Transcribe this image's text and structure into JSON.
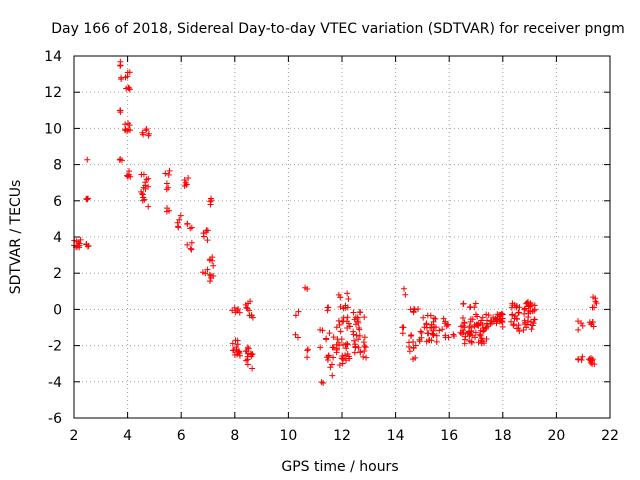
{
  "chart_data": {
    "type": "scatter",
    "title": "Day 166 of 2018, Sidereal Day-to-day VTEC variation (SDTVAR) for receiver pngm",
    "xlabel": "GPS time / hours",
    "ylabel": "SDTVAR / TECUs",
    "xlim": [
      2,
      22
    ],
    "ylim": [
      -6,
      14
    ],
    "x_ticks": [
      2,
      4,
      6,
      8,
      10,
      12,
      14,
      16,
      18,
      20,
      22
    ],
    "y_ticks": [
      -6,
      -4,
      -2,
      0,
      2,
      4,
      6,
      8,
      10,
      12,
      14
    ],
    "grid": true,
    "marker": "+",
    "color": "#ff0000",
    "clusters": [
      {
        "x": [
          2.0,
          2.25
        ],
        "y": [
          3.4,
          3.9
        ],
        "n": 10
      },
      {
        "x": [
          2.45,
          2.55
        ],
        "y": [
          3.3,
          3.8
        ],
        "n": 4
      },
      {
        "x": [
          2.45,
          2.55
        ],
        "y": [
          5.9,
          6.2
        ],
        "n": 4
      },
      {
        "x": [
          2.48,
          2.52
        ],
        "y": [
          8.2,
          8.3
        ],
        "n": 1
      },
      {
        "x": [
          3.7,
          3.8
        ],
        "y": [
          13.4,
          13.8
        ],
        "n": 3
      },
      {
        "x": [
          3.7,
          3.8
        ],
        "y": [
          12.7,
          12.9
        ],
        "n": 2
      },
      {
        "x": [
          3.9,
          4.1
        ],
        "y": [
          11.9,
          13.1
        ],
        "n": 8
      },
      {
        "x": [
          3.7,
          3.8
        ],
        "y": [
          10.7,
          11.1
        ],
        "n": 3
      },
      {
        "x": [
          3.9,
          4.1
        ],
        "y": [
          9.7,
          10.4
        ],
        "n": 8
      },
      {
        "x": [
          3.7,
          3.8
        ],
        "y": [
          8.1,
          8.4
        ],
        "n": 3
      },
      {
        "x": [
          3.95,
          4.1
        ],
        "y": [
          7.2,
          7.7
        ],
        "n": 6
      },
      {
        "x": [
          4.55,
          4.8
        ],
        "y": [
          9.6,
          10.0
        ],
        "n": 6
      },
      {
        "x": [
          4.5,
          4.8
        ],
        "y": [
          5.5,
          7.5
        ],
        "n": 16
      },
      {
        "x": [
          5.4,
          5.6
        ],
        "y": [
          7.3,
          7.7
        ],
        "n": 3
      },
      {
        "x": [
          5.4,
          5.6
        ],
        "y": [
          6.6,
          7.0
        ],
        "n": 3
      },
      {
        "x": [
          5.4,
          5.6
        ],
        "y": [
          5.3,
          5.6
        ],
        "n": 3
      },
      {
        "x": [
          5.85,
          6.0
        ],
        "y": [
          4.5,
          5.2
        ],
        "n": 5
      },
      {
        "x": [
          6.1,
          6.4
        ],
        "y": [
          6.7,
          7.3
        ],
        "n": 6
      },
      {
        "x": [
          6.2,
          6.4
        ],
        "y": [
          4.4,
          4.8
        ],
        "n": 4
      },
      {
        "x": [
          6.2,
          6.4
        ],
        "y": [
          3.3,
          3.7
        ],
        "n": 4
      },
      {
        "x": [
          6.8,
          7.0
        ],
        "y": [
          3.8,
          4.4
        ],
        "n": 6
      },
      {
        "x": [
          6.8,
          7.0
        ],
        "y": [
          1.9,
          2.2
        ],
        "n": 3
      },
      {
        "x": [
          7.05,
          7.2
        ],
        "y": [
          5.5,
          6.2
        ],
        "n": 4
      },
      {
        "x": [
          7.05,
          7.2
        ],
        "y": [
          2.4,
          2.9
        ],
        "n": 5
      },
      {
        "x": [
          7.05,
          7.2
        ],
        "y": [
          1.5,
          2.0
        ],
        "n": 5
      },
      {
        "x": [
          7.9,
          8.2
        ],
        "y": [
          -0.2,
          0.1
        ],
        "n": 6
      },
      {
        "x": [
          7.9,
          8.2
        ],
        "y": [
          -2.6,
          -1.6
        ],
        "n": 16
      },
      {
        "x": [
          8.4,
          8.6
        ],
        "y": [
          -0.2,
          0.5
        ],
        "n": 6
      },
      {
        "x": [
          8.5,
          8.7
        ],
        "y": [
          -0.8,
          -0.3
        ],
        "n": 4
      },
      {
        "x": [
          8.4,
          8.7
        ],
        "y": [
          -3.3,
          -1.9
        ],
        "n": 14
      },
      {
        "x": [
          10.25,
          10.4
        ],
        "y": [
          -1.7,
          -1.2
        ],
        "n": 2
      },
      {
        "x": [
          10.25,
          10.4
        ],
        "y": [
          -0.4,
          0.0
        ],
        "n": 2
      },
      {
        "x": [
          10.6,
          10.75
        ],
        "y": [
          1.1,
          1.4
        ],
        "n": 2
      },
      {
        "x": [
          10.6,
          10.75
        ],
        "y": [
          -2.7,
          -2.2
        ],
        "n": 3
      },
      {
        "x": [
          11.15,
          11.3
        ],
        "y": [
          -4.1,
          -3.8
        ],
        "n": 2
      },
      {
        "x": [
          11.15,
          11.3
        ],
        "y": [
          -2.2,
          -1.1
        ],
        "n": 3
      },
      {
        "x": [
          11.4,
          11.7
        ],
        "y": [
          -3.9,
          -1.2
        ],
        "n": 14
      },
      {
        "x": [
          11.4,
          11.6
        ],
        "y": [
          -0.4,
          0.2
        ],
        "n": 3
      },
      {
        "x": [
          11.8,
          12.3
        ],
        "y": [
          -3.1,
          0.9
        ],
        "n": 45
      },
      {
        "x": [
          12.4,
          12.7
        ],
        "y": [
          -2.5,
          -0.1
        ],
        "n": 25
      },
      {
        "x": [
          12.75,
          12.9
        ],
        "y": [
          -2.8,
          -0.3
        ],
        "n": 8
      },
      {
        "x": [
          14.25,
          14.4
        ],
        "y": [
          0.8,
          1.2
        ],
        "n": 2
      },
      {
        "x": [
          14.25,
          14.4
        ],
        "y": [
          -1.4,
          -0.8
        ],
        "n": 3
      },
      {
        "x": [
          14.5,
          14.9
        ],
        "y": [
          -2.8,
          -1.3
        ],
        "n": 12
      },
      {
        "x": [
          14.55,
          14.85
        ],
        "y": [
          -0.2,
          0.2
        ],
        "n": 6
      },
      {
        "x": [
          14.9,
          15.8
        ],
        "y": [
          -1.8,
          -0.3
        ],
        "n": 35
      },
      {
        "x": [
          15.8,
          16.2
        ],
        "y": [
          -2.1,
          -0.6
        ],
        "n": 10
      },
      {
        "x": [
          16.4,
          17.4
        ],
        "y": [
          -1.9,
          -0.2
        ],
        "n": 60
      },
      {
        "x": [
          16.5,
          17.0
        ],
        "y": [
          0.0,
          0.4
        ],
        "n": 6
      },
      {
        "x": [
          17.4,
          18.0
        ],
        "y": [
          -1.0,
          -0.2
        ],
        "n": 30
      },
      {
        "x": [
          18.3,
          18.8
        ],
        "y": [
          -1.2,
          0.5
        ],
        "n": 25
      },
      {
        "x": [
          18.8,
          19.2
        ],
        "y": [
          -1.1,
          0.5
        ],
        "n": 30
      },
      {
        "x": [
          20.8,
          21.0
        ],
        "y": [
          -1.3,
          -0.6
        ],
        "n": 4
      },
      {
        "x": [
          20.8,
          21.0
        ],
        "y": [
          -2.8,
          -2.5
        ],
        "n": 4
      },
      {
        "x": [
          21.2,
          21.5
        ],
        "y": [
          0.1,
          0.7
        ],
        "n": 6
      },
      {
        "x": [
          21.2,
          21.5
        ],
        "y": [
          -1.0,
          -0.6
        ],
        "n": 6
      },
      {
        "x": [
          21.2,
          21.5
        ],
        "y": [
          -3.1,
          -2.6
        ],
        "n": 10
      }
    ]
  }
}
